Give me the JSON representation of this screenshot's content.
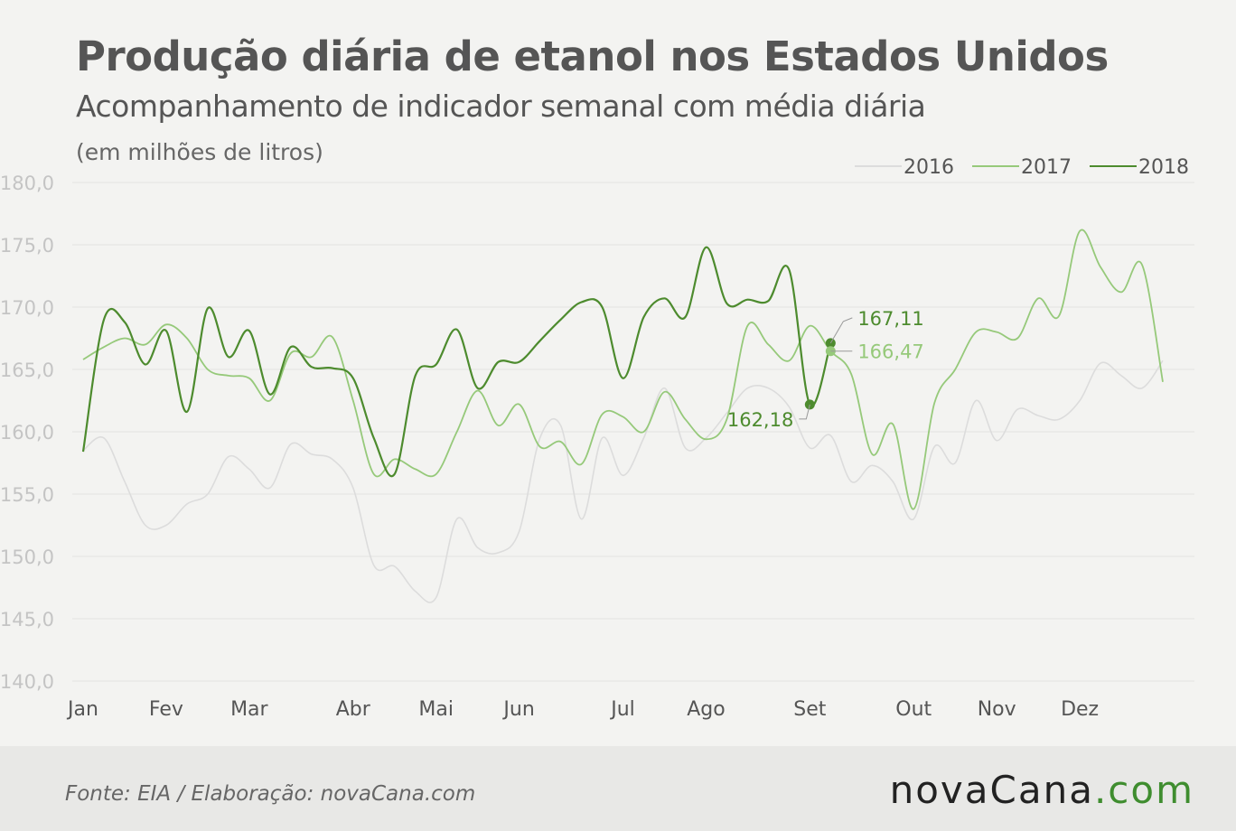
{
  "header": {
    "title": "Produção diária de etanol nos Estados Unidos",
    "subtitle": "Acompanhamento de indicador semanal com média diária",
    "unit_note": "(em milhões de litros)"
  },
  "footer": {
    "source": "Fonte:  EIA / Elaboração:  novaCana.com",
    "brand_name": "novaCana",
    "brand_dot": ".",
    "brand_tld": "com"
  },
  "chart_data": {
    "type": "line",
    "ylim": [
      140,
      180
    ],
    "yticks": [
      "140,0",
      "145,0",
      "150,0",
      "155,0",
      "160,0",
      "165,0",
      "170,0",
      "175,0",
      "180,0"
    ],
    "ytick_values": [
      140,
      145,
      150,
      155,
      160,
      165,
      170,
      175,
      180
    ],
    "x_range": [
      0,
      53
    ],
    "x_ticks": [
      {
        "label": "Jan",
        "week": 0
      },
      {
        "label": "Fev",
        "week": 4
      },
      {
        "label": "Mar",
        "week": 8
      },
      {
        "label": "Abr",
        "week": 13
      },
      {
        "label": "Mai",
        "week": 17
      },
      {
        "label": "Jun",
        "week": 21
      },
      {
        "label": "Jul",
        "week": 26
      },
      {
        "label": "Ago",
        "week": 30
      },
      {
        "label": "Set",
        "week": 35
      },
      {
        "label": "Out",
        "week": 40
      },
      {
        "label": "Nov",
        "week": 44
      },
      {
        "label": "Dez",
        "week": 48
      }
    ],
    "grid": true,
    "legend_position": "top-right",
    "series": [
      {
        "name": "2016",
        "color": "#dcdcdc",
        "x": [
          0,
          1,
          2,
          3,
          4,
          5,
          6,
          7,
          8,
          9,
          10,
          11,
          12,
          13,
          14,
          15,
          16,
          17,
          18,
          19,
          20,
          21,
          22,
          23,
          24,
          25,
          26,
          27,
          28,
          29,
          30,
          31,
          32,
          33,
          34,
          35,
          36,
          37,
          38,
          39,
          40,
          41,
          42,
          43,
          44,
          45,
          46,
          47,
          48,
          49,
          50,
          51,
          52
        ],
        "values": [
          158.5,
          159.5,
          156,
          152.5,
          152.5,
          154.2,
          155,
          158,
          157,
          155.5,
          159,
          158.2,
          157.8,
          155.5,
          149.3,
          149.2,
          147.2,
          146.7,
          153,
          150.7,
          150.3,
          152,
          159.5,
          160.5,
          153,
          159.5,
          156.5,
          159.5,
          163.5,
          158.7,
          159.5,
          161.5,
          163.5,
          163.5,
          162,
          158.7,
          159.7,
          156,
          157.3,
          156,
          153,
          158.8,
          157.5,
          162.5,
          159.3,
          161.8,
          161.3,
          161,
          162.5,
          165.5,
          164.5,
          163.5,
          165.7
        ]
      },
      {
        "name": "2017",
        "color": "#96c97a",
        "x": [
          0,
          1,
          2,
          3,
          4,
          5,
          6,
          7,
          8,
          9,
          10,
          11,
          12,
          13,
          14,
          15,
          16,
          17,
          18,
          19,
          20,
          21,
          22,
          23,
          24,
          25,
          26,
          27,
          28,
          29,
          30,
          31,
          32,
          33,
          34,
          35,
          36,
          37,
          38,
          39,
          40,
          41,
          42,
          43,
          44,
          45,
          46,
          47,
          48,
          49,
          50,
          51,
          52
        ],
        "values": [
          165.8,
          166.8,
          167.5,
          167,
          168.6,
          167.5,
          165,
          164.5,
          164.3,
          162.5,
          166.3,
          166,
          167.6,
          162.5,
          156.6,
          157.8,
          157,
          156.6,
          160,
          163.3,
          160.5,
          162.2,
          158.8,
          159.2,
          157.4,
          161.4,
          161.2,
          160,
          163.2,
          161,
          159.4,
          161,
          168.5,
          167,
          165.7,
          168.5,
          166.47,
          164.6,
          158.2,
          160.6,
          153.8,
          162.3,
          165,
          168,
          168,
          167.5,
          170.7,
          169.3,
          176.1,
          173.2,
          171.2,
          173.4,
          164
        ]
      },
      {
        "name": "2018",
        "color": "#4d8b2e",
        "x": [
          0,
          1,
          2,
          3,
          4,
          5,
          6,
          7,
          8,
          9,
          10,
          11,
          12,
          13,
          14,
          15,
          16,
          17,
          18,
          19,
          20,
          21,
          22,
          23,
          24,
          25,
          26,
          27,
          28,
          29,
          30,
          31,
          32,
          33,
          34,
          35,
          36
        ],
        "values": [
          158.4,
          169,
          168.8,
          165.4,
          168.1,
          161.6,
          169.9,
          166,
          168.1,
          163,
          166.8,
          165.2,
          165.1,
          164.3,
          159.5,
          156.6,
          164.5,
          165.4,
          168.2,
          163.5,
          165.6,
          165.6,
          167.3,
          169,
          170.4,
          170,
          164.3,
          169.2,
          170.7,
          169.2,
          174.8,
          170.3,
          170.6,
          170.5,
          173,
          162.18,
          167.11
        ]
      }
    ],
    "annotations": [
      {
        "text": "167,11",
        "series": "2018",
        "x": 36,
        "y": 167.11
      },
      {
        "text": "166,47",
        "series": "2017",
        "x": 36,
        "y": 166.47
      },
      {
        "text": "162,18",
        "series": "2018",
        "x": 35,
        "y": 162.18
      }
    ]
  }
}
